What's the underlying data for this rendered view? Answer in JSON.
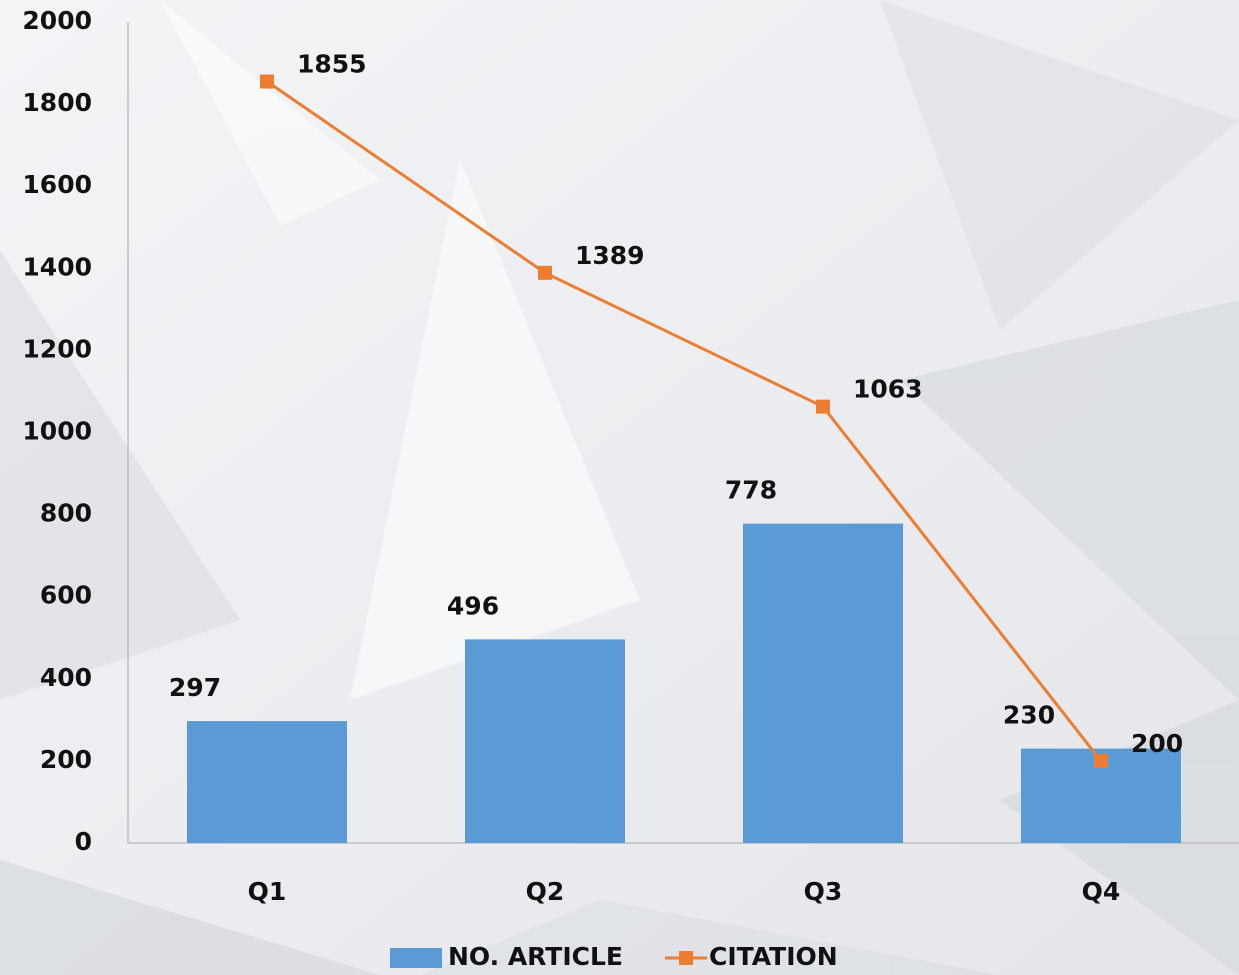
{
  "chart_data": {
    "type": "combo",
    "categories": [
      "Q1",
      "Q2",
      "Q3",
      "Q4"
    ],
    "series": [
      {
        "name": "NO. ARTICLE",
        "type": "bar",
        "color": "#5b9bd5",
        "values": [
          297,
          496,
          778,
          230
        ]
      },
      {
        "name": "CITATION",
        "type": "line",
        "color": "#ed7d31",
        "values": [
          1855,
          1389,
          1063,
          200
        ]
      }
    ],
    "ylim": [
      0,
      2000
    ],
    "yticks": [
      0,
      200,
      400,
      600,
      800,
      1000,
      1200,
      1400,
      1600,
      1800,
      2000
    ],
    "grid": false,
    "legend": "bottom"
  }
}
